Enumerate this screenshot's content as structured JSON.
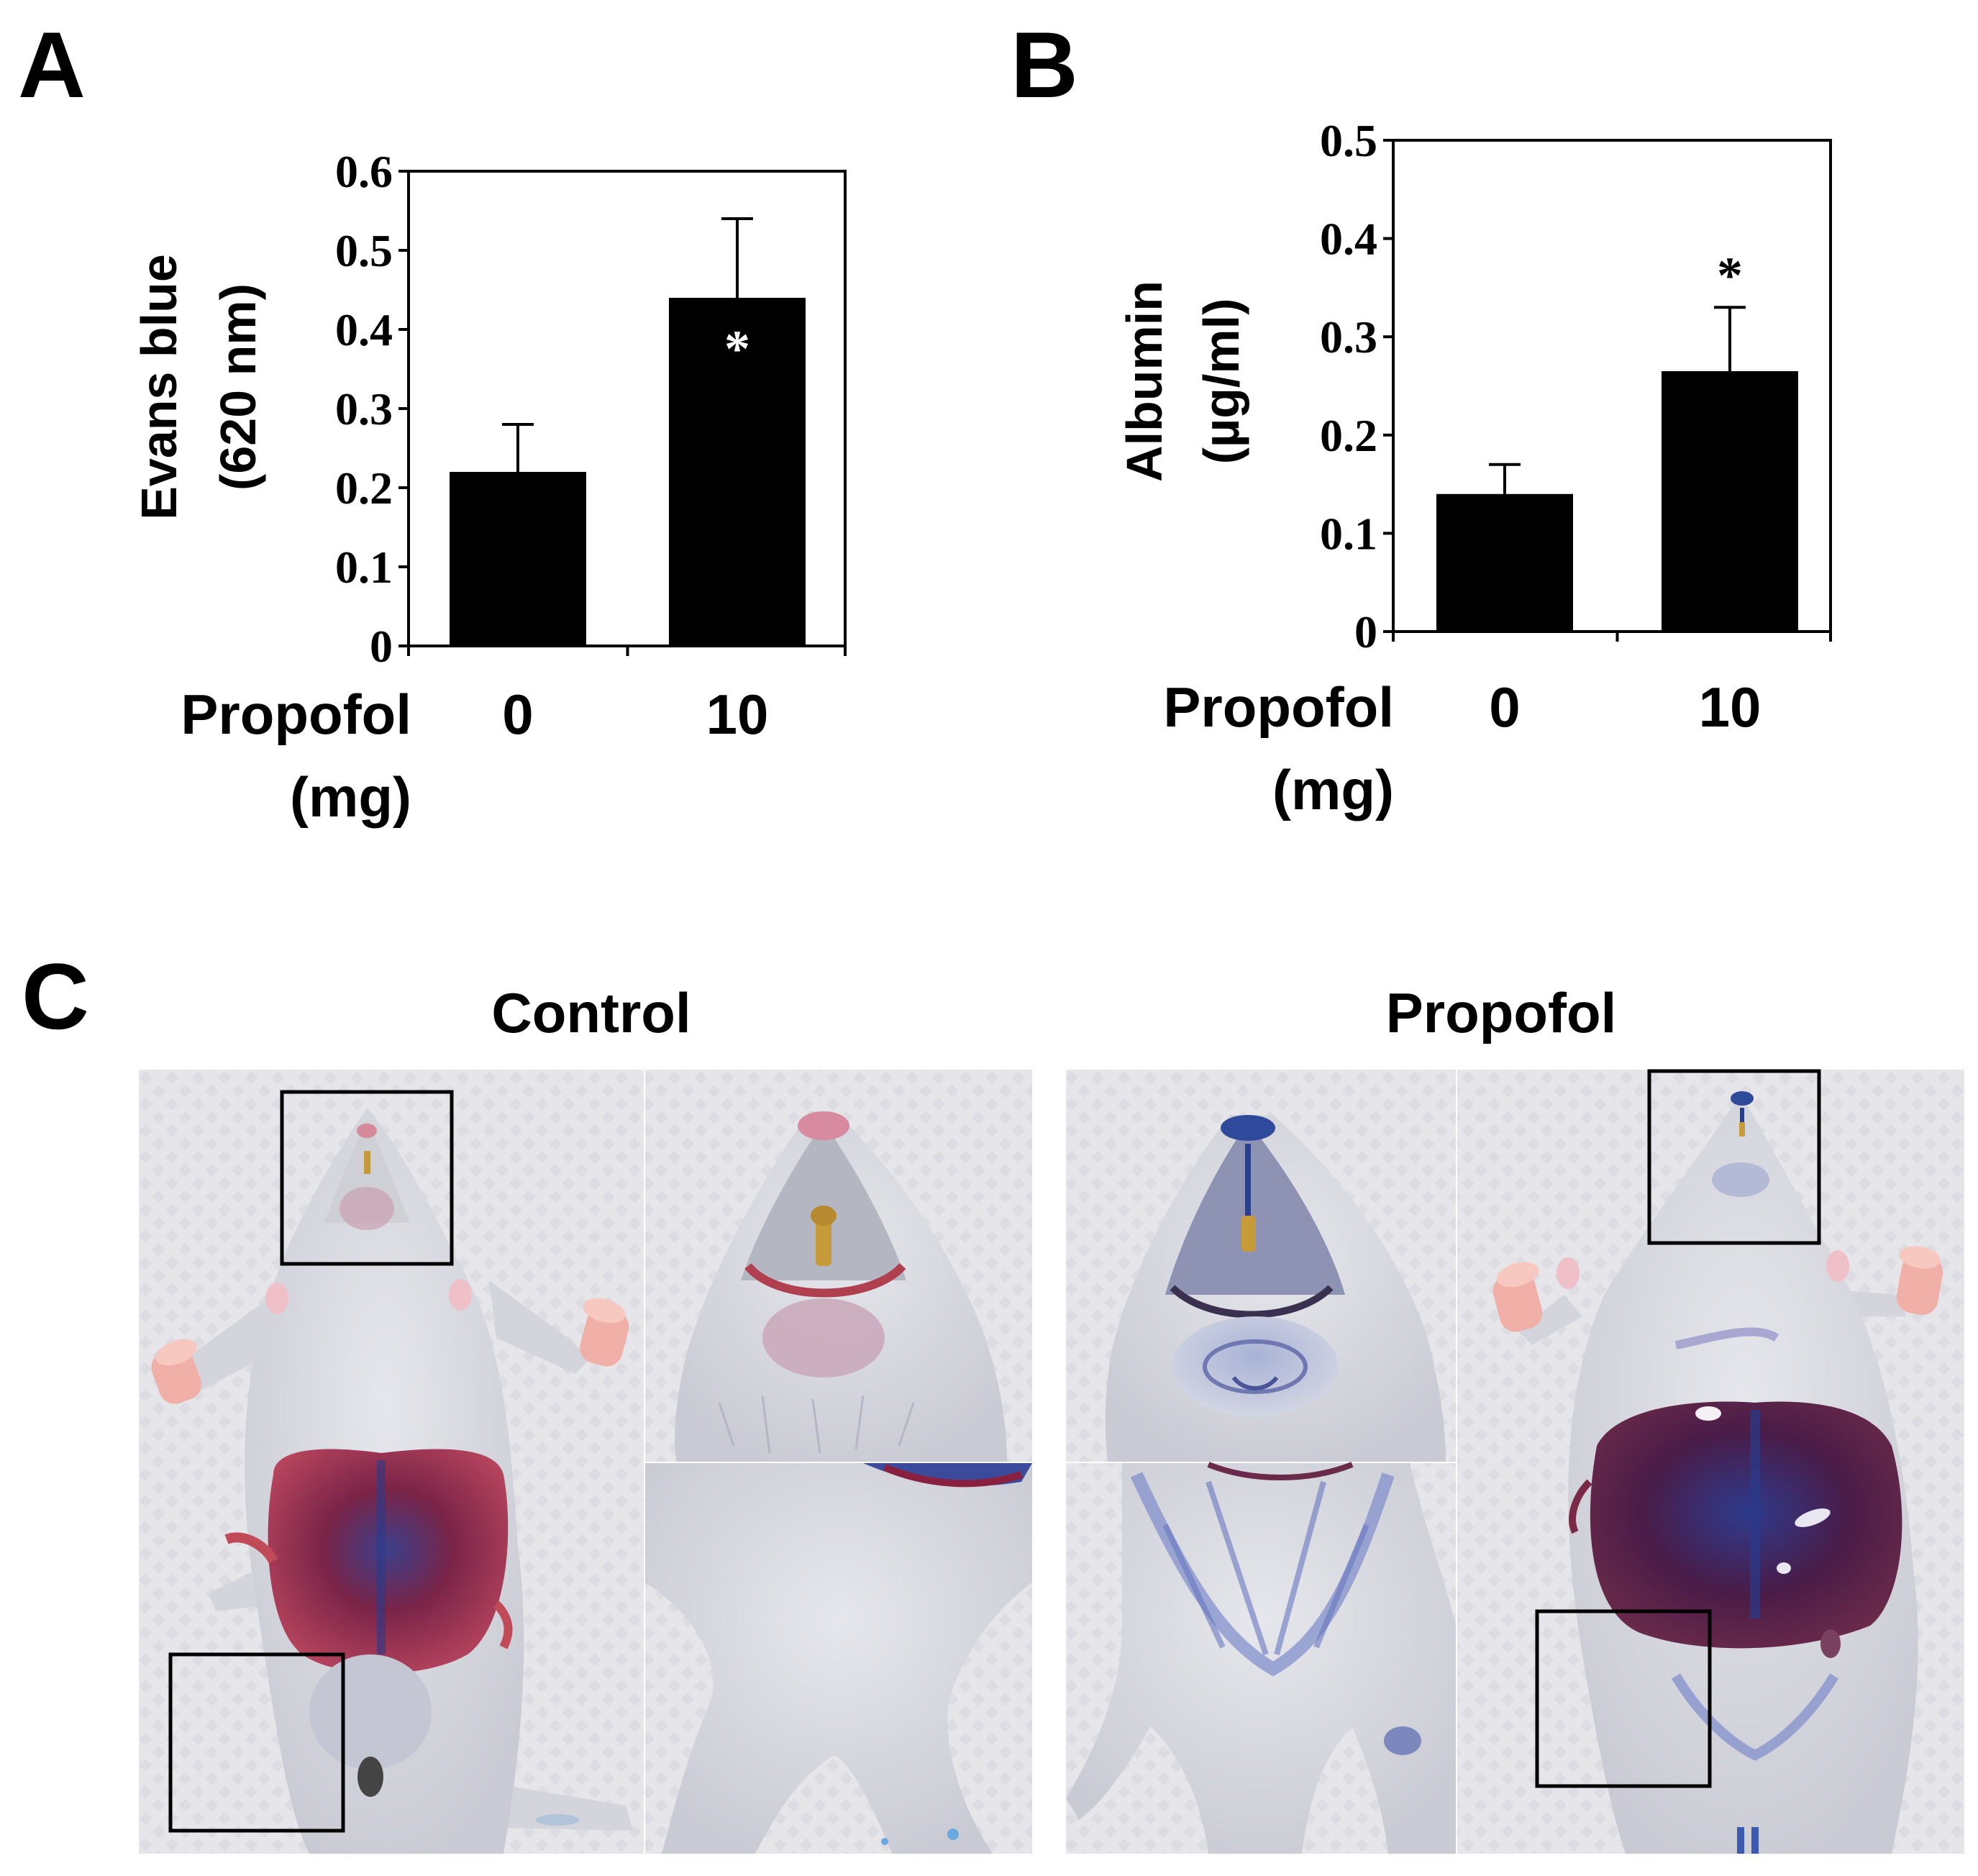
{
  "panels": {
    "a_letter": "A",
    "b_letter": "B",
    "c_letter": "C"
  },
  "chart_data": [
    {
      "type": "bar",
      "panel": "A",
      "ylabel_line1": "Evans blue",
      "ylabel_line2": "(620 nm)",
      "xlabel_line1": "Propofol",
      "xlabel_line2": "(mg)",
      "categories": [
        "0",
        "10"
      ],
      "values": [
        0.22,
        0.44
      ],
      "errors": [
        0.06,
        0.1
      ],
      "significance": [
        "",
        "*"
      ],
      "ylim": [
        0,
        0.6
      ],
      "yticks": [
        0,
        0.1,
        0.2,
        0.3,
        0.4,
        0.5,
        0.6
      ],
      "ytick_labels": [
        "0",
        "0.1",
        "0.2",
        "0.3",
        "0.4",
        "0.5",
        "0.6"
      ]
    },
    {
      "type": "bar",
      "panel": "B",
      "ylabel_line1": "Albumin",
      "ylabel_line2": "(µg/ml)",
      "xlabel_line1": "Propofol",
      "xlabel_line2": "(mg)",
      "categories": [
        "0",
        "10"
      ],
      "values": [
        0.14,
        0.265
      ],
      "errors": [
        0.03,
        0.065
      ],
      "significance": [
        "",
        "*"
      ],
      "ylim": [
        0,
        0.5
      ],
      "yticks": [
        0,
        0.1,
        0.2,
        0.3,
        0.4,
        0.5
      ],
      "ytick_labels": [
        "0",
        "0.1",
        "0.2",
        "0.3",
        "0.4",
        "0.5"
      ]
    }
  ],
  "photos": {
    "control_title": "Control",
    "propofol_title": "Propofol"
  },
  "colors": {
    "bar": "#000000",
    "photo_background": "#e4e4e8",
    "mouse_fur": "#d9dbe0",
    "control_chest": "#8a2040",
    "propofol_chest": "#4a1a45",
    "evans_blue": "#2c4a9a"
  }
}
